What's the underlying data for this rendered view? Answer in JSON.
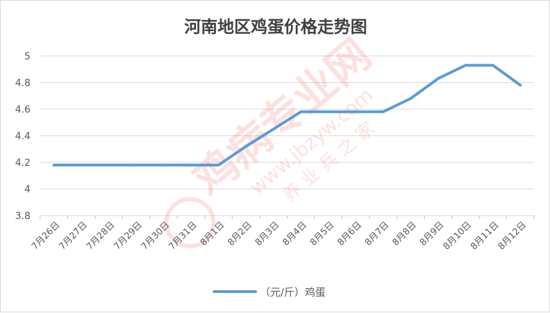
{
  "chart_data": {
    "type": "line",
    "title": "河南地区鸡蛋价格走势图",
    "categories": [
      "7月26日",
      "7月27日",
      "7月28日",
      "7月29日",
      "7月30日",
      "7月31日",
      "8月1日",
      "8月2日",
      "8月3日",
      "8月4日",
      "8月5日",
      "8月6日",
      "8月7日",
      "8月8日",
      "8月9日",
      "8月10日",
      "8月11日",
      "8月12日"
    ],
    "series": [
      {
        "name": "（元/斤）鸡蛋",
        "color": "#5b9bd5",
        "values": [
          4.18,
          4.18,
          4.18,
          4.18,
          4.18,
          4.18,
          4.18,
          4.32,
          4.45,
          4.58,
          4.58,
          4.58,
          4.58,
          4.68,
          4.83,
          4.93,
          4.93,
          4.78
        ]
      }
    ],
    "ylim": [
      3.8,
      5
    ],
    "yticks": [
      "3.8",
      "4",
      "4.2",
      "4.4",
      "4.6",
      "4.8",
      "5"
    ],
    "grid": true,
    "legend_position": "bottom"
  },
  "watermark": {
    "text_main": "鸡病专业网",
    "text_url": "www.jbzyw.com",
    "text_small": "养 业 兵 之 家",
    "color": "#e5332a"
  }
}
